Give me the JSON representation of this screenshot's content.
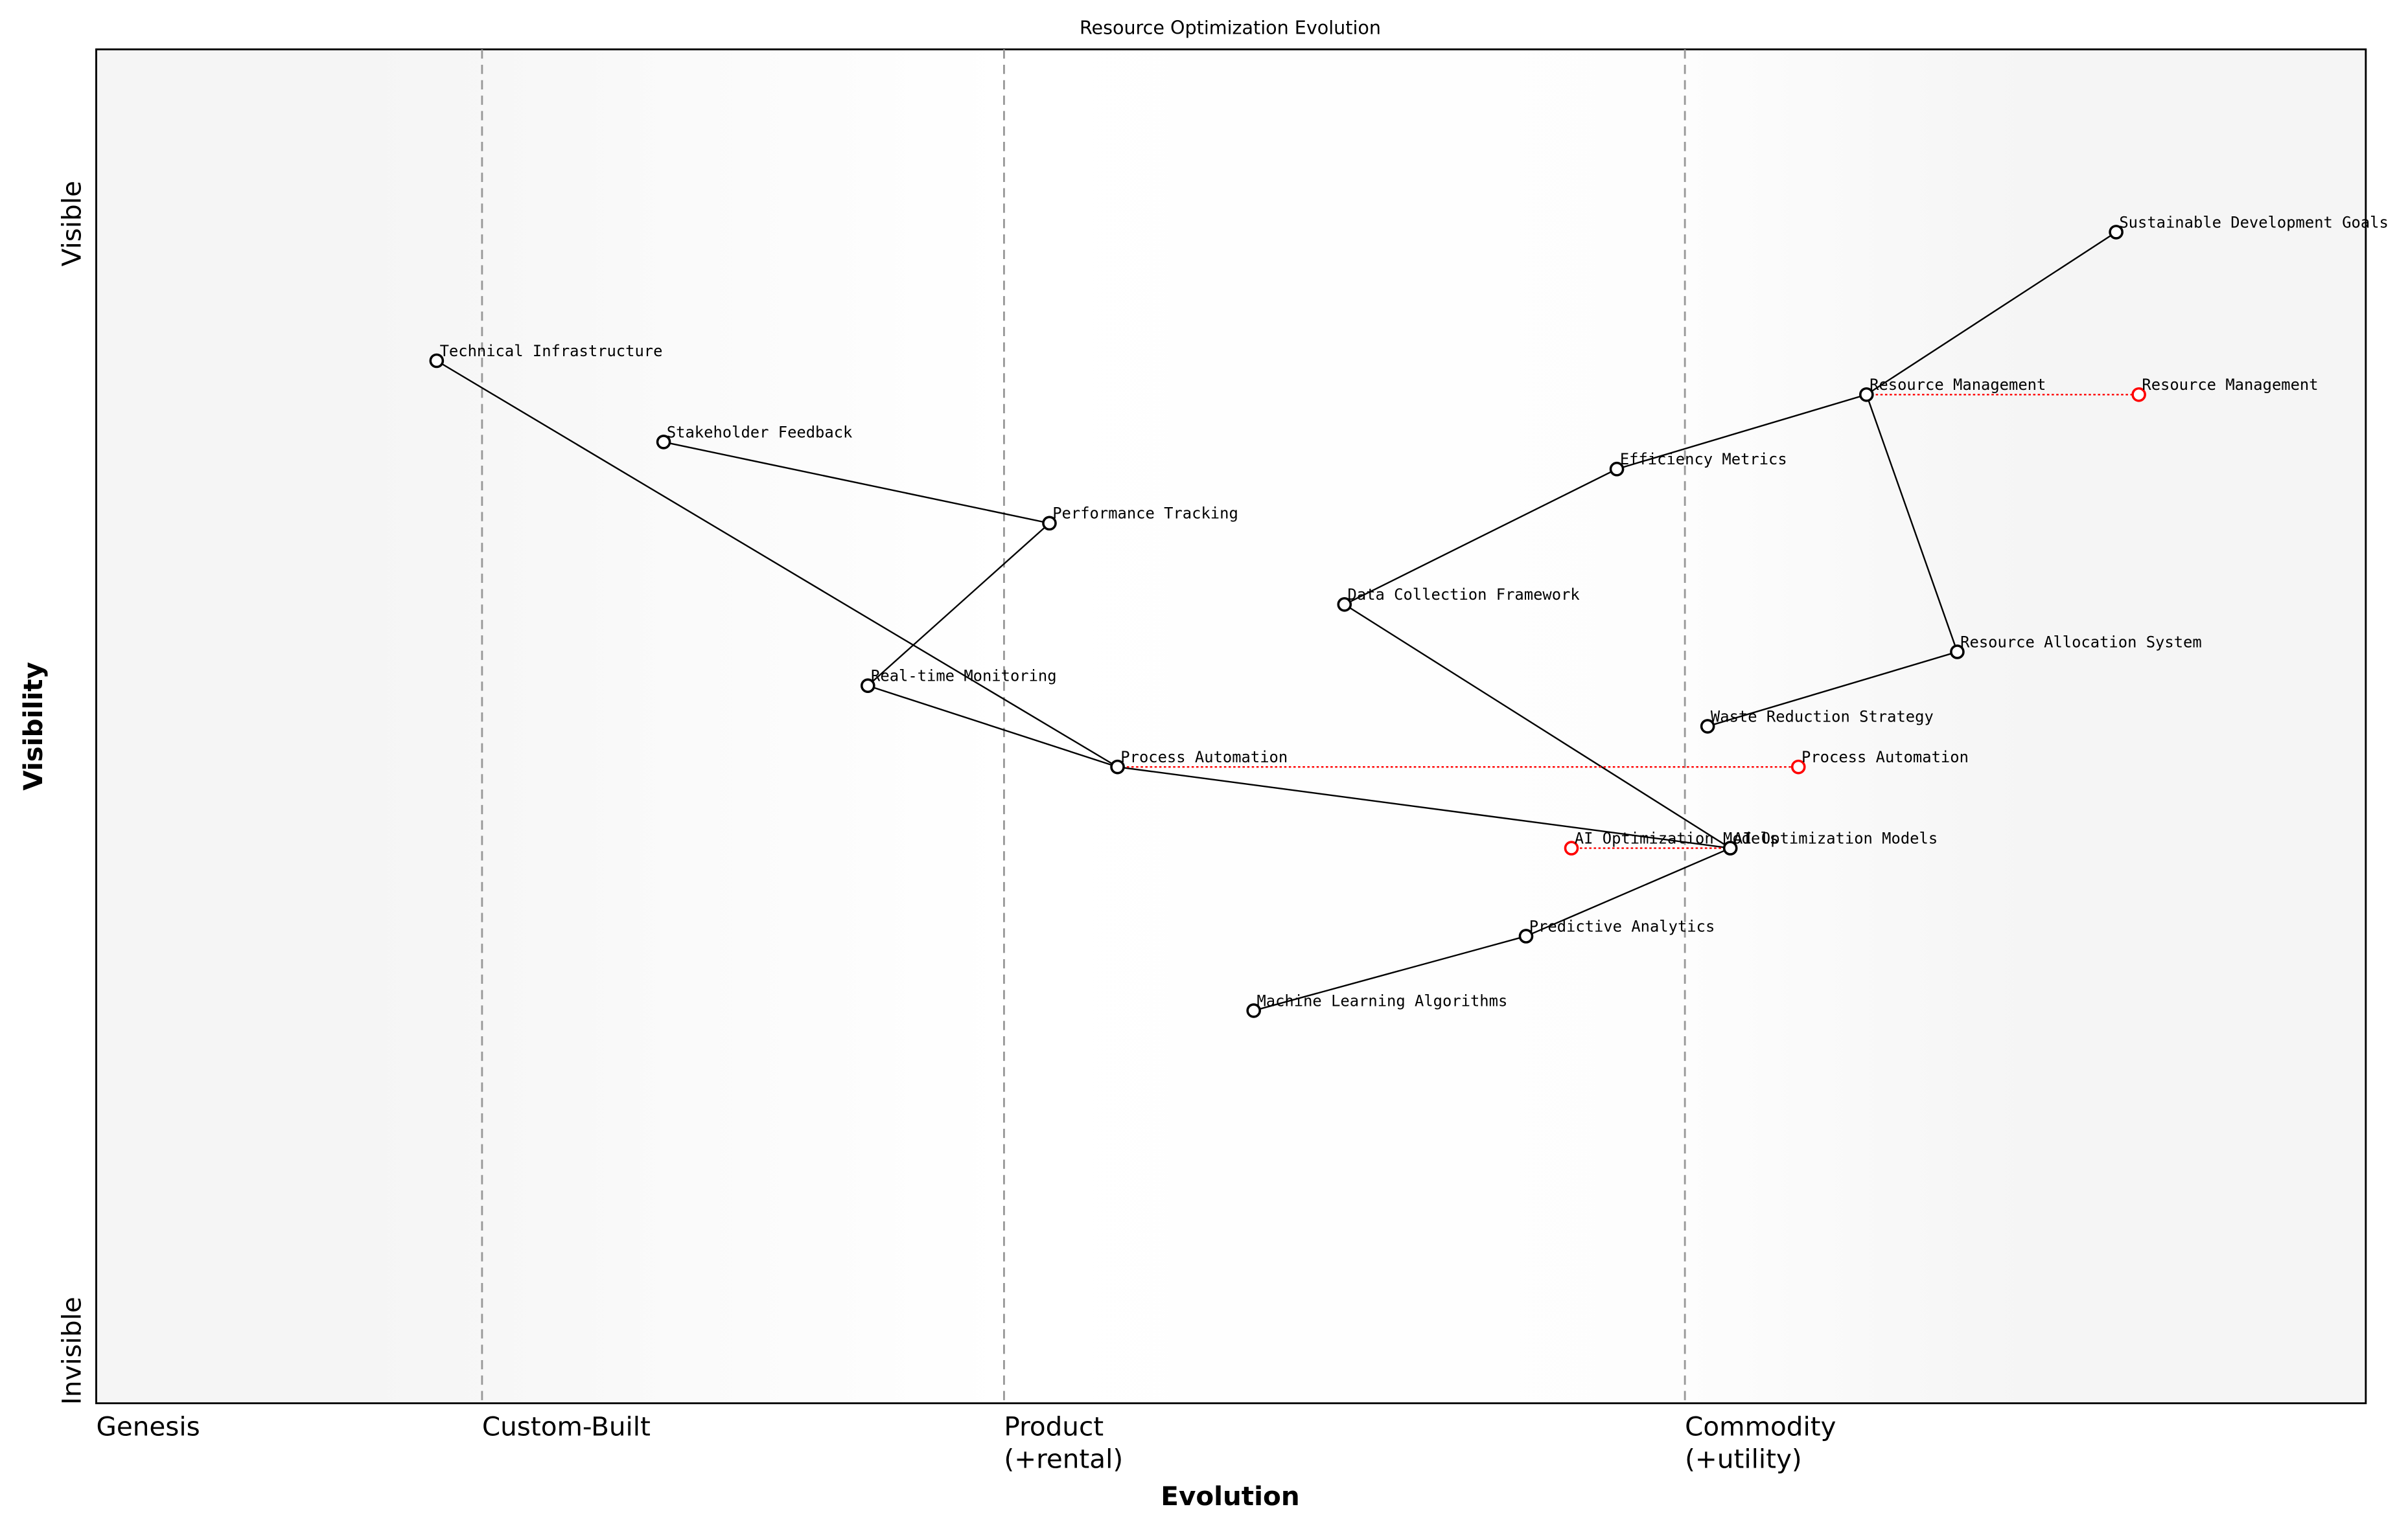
{
  "title": "Resource Optimization Evolution",
  "x_axis": {
    "label": "Evolution",
    "stages": [
      {
        "label": "Genesis",
        "position": 0.0
      },
      {
        "label": "Custom-Built",
        "position": 0.17
      },
      {
        "label": "Product\n(+rental)",
        "position": 0.4
      },
      {
        "label": "Commodity\n(+utility)",
        "position": 0.7
      }
    ]
  },
  "y_axis": {
    "label": "Visibility",
    "top_label": "Visible",
    "bottom_label": "Invisible"
  },
  "colors": {
    "component": "#000000",
    "evolved": "#ff0000",
    "background_edge": "#f5f5f5"
  },
  "chart_data": {
    "type": "wardley-map",
    "xlim": [
      0,
      1
    ],
    "ylim": [
      0,
      1
    ],
    "components": [
      {
        "name": "Technical Infrastructure",
        "evolution": 0.15,
        "visibility": 0.77
      },
      {
        "name": "Stakeholder Feedback",
        "evolution": 0.25,
        "visibility": 0.71
      },
      {
        "name": "Performance Tracking",
        "evolution": 0.42,
        "visibility": 0.65
      },
      {
        "name": "Real-time Monitoring",
        "evolution": 0.34,
        "visibility": 0.53
      },
      {
        "name": "Process Automation",
        "evolution": 0.45,
        "visibility": 0.47
      },
      {
        "name": "Data Collection Framework",
        "evolution": 0.55,
        "visibility": 0.59
      },
      {
        "name": "Efficiency Metrics",
        "evolution": 0.67,
        "visibility": 0.69
      },
      {
        "name": "Resource Management",
        "evolution": 0.78,
        "visibility": 0.745
      },
      {
        "name": "Sustainable Development Goals",
        "evolution": 0.89,
        "visibility": 0.865
      },
      {
        "name": "Resource Allocation System",
        "evolution": 0.82,
        "visibility": 0.555
      },
      {
        "name": "Waste Reduction Strategy",
        "evolution": 0.71,
        "visibility": 0.5
      },
      {
        "name": "AI Optimization Models",
        "evolution": 0.72,
        "visibility": 0.41
      },
      {
        "name": "Predictive Analytics",
        "evolution": 0.63,
        "visibility": 0.345
      },
      {
        "name": "Machine Learning Algorithms",
        "evolution": 0.51,
        "visibility": 0.29
      }
    ],
    "links": [
      [
        "Sustainable Development Goals",
        "Resource Management"
      ],
      [
        "Resource Management",
        "Efficiency Metrics"
      ],
      [
        "Resource Management",
        "Resource Allocation System"
      ],
      [
        "Efficiency Metrics",
        "Data Collection Framework"
      ],
      [
        "Data Collection Framework",
        "AI Optimization Models"
      ],
      [
        "Resource Allocation System",
        "Waste Reduction Strategy"
      ],
      [
        "Technical Infrastructure",
        "Process Automation"
      ],
      [
        "Stakeholder Feedback",
        "Performance Tracking"
      ],
      [
        "Performance Tracking",
        "Real-time Monitoring"
      ],
      [
        "Real-time Monitoring",
        "Process Automation"
      ],
      [
        "Process Automation",
        "AI Optimization Models"
      ],
      [
        "AI Optimization Models",
        "Predictive Analytics"
      ],
      [
        "Predictive Analytics",
        "Machine Learning Algorithms"
      ]
    ],
    "evolutions": [
      {
        "name": "Resource Management",
        "from": 0.78,
        "to": 0.9,
        "visibility": 0.745
      },
      {
        "name": "Process Automation",
        "from": 0.45,
        "to": 0.75,
        "visibility": 0.47
      },
      {
        "name": "AI Optimization Models",
        "from": 0.72,
        "to": 0.65,
        "visibility": 0.41
      }
    ]
  }
}
